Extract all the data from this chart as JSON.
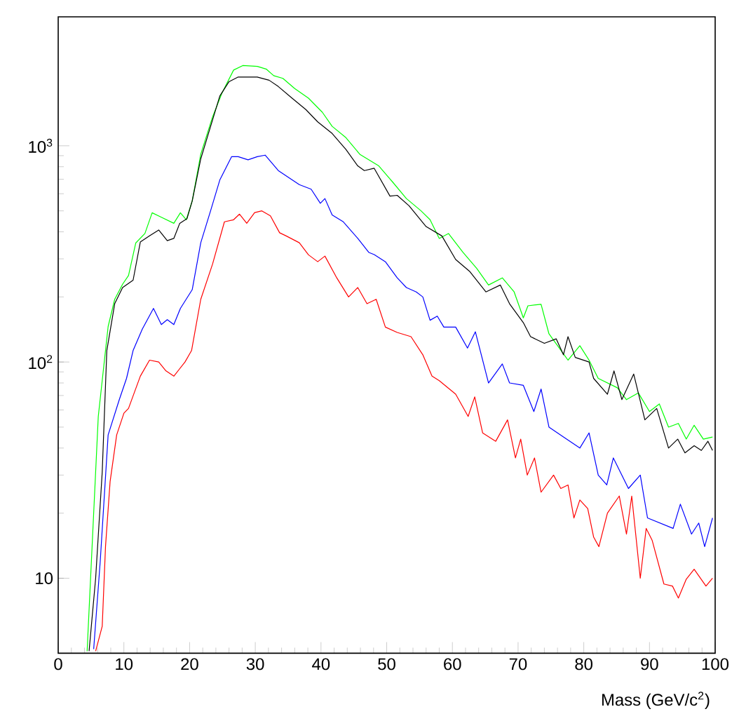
{
  "chart_data": {
    "type": "line",
    "xlabel": "Mass (GeV/c$^{2}$)",
    "log": "y",
    "xlim": [
      0,
      100
    ],
    "xticks": [
      0,
      10,
      20,
      30,
      40,
      50,
      60,
      70,
      80,
      90,
      100
    ],
    "ylim": [
      4.5,
      3950
    ],
    "yticks": [
      {
        "value": 10,
        "label": "10"
      },
      {
        "value": 100,
        "label": "10$^{2}$"
      },
      {
        "value": 1000,
        "label": "10$^{3}$"
      }
    ],
    "series": [
      {
        "color": "#00ff00",
        "x": [
          4.4,
          6.1,
          7.6,
          8.6,
          9.8,
          10.7,
          11.8,
          13.2,
          14.3,
          15.7,
          17.6,
          18.6,
          19.5,
          20.4,
          21.7,
          23.5,
          24.9,
          26.7,
          28.1,
          30.3,
          31.7,
          32.8,
          34.2,
          36.0,
          38.1,
          40.2,
          41.7,
          43.8,
          45.9,
          48.8,
          50.9,
          53.0,
          55.2,
          56.6,
          58.0,
          59.4,
          61.6,
          63.7,
          65.5,
          67.6,
          69.4,
          70.8,
          71.5,
          73.5,
          74.7,
          77.6,
          79.4,
          80.8,
          82.2,
          85.1,
          86.5,
          88.3,
          90.0,
          91.5,
          92.9,
          94.4,
          95.6,
          96.8,
          98.2,
          99.6
        ],
        "values": [
          4.6,
          56,
          146,
          195,
          229,
          251,
          355,
          393,
          490,
          467,
          438,
          490,
          455,
          556,
          914,
          1360,
          1745,
          2240,
          2350,
          2330,
          2260,
          2110,
          2050,
          1840,
          1660,
          1430,
          1230,
          1090,
          914,
          807,
          680,
          570,
          501,
          455,
          373,
          393,
          322,
          271,
          227,
          245,
          211,
          160,
          182,
          185,
          135,
          102,
          119,
          102,
          84,
          76,
          67,
          72,
          59,
          64,
          50,
          52,
          44,
          51,
          44,
          45
        ]
      },
      {
        "color": "#000000",
        "x": [
          4.7,
          5.7,
          6.7,
          7.4,
          8.6,
          9.8,
          11.4,
          12.5,
          13.9,
          15.3,
          16.6,
          17.6,
          18.5,
          19.6,
          20.4,
          21.7,
          23.2,
          24.6,
          26.0,
          27.4,
          30.3,
          32.1,
          33.5,
          35.6,
          37.7,
          39.5,
          41.7,
          43.8,
          45.6,
          46.6,
          48.1,
          50.5,
          51.6,
          53.4,
          56.0,
          58.4,
          60.5,
          62.6,
          65.1,
          67.3,
          68.7,
          70.8,
          71.9,
          74.0,
          75.8,
          76.9,
          77.6,
          78.7,
          80.8,
          81.5,
          83.6,
          84.6,
          85.8,
          87.6,
          89.3,
          91.1,
          92.9,
          94.3,
          95.4,
          96.8,
          97.9,
          98.9,
          99.6
        ],
        "values": [
          4.6,
          10,
          31,
          113,
          186,
          221,
          239,
          359,
          383,
          408,
          364,
          373,
          438,
          460,
          556,
          870,
          1230,
          1700,
          1980,
          2080,
          2080,
          2010,
          1880,
          1660,
          1470,
          1290,
          1140,
          961,
          807,
          768,
          787,
          585,
          590,
          528,
          423,
          383,
          298,
          263,
          211,
          227,
          186,
          152,
          131,
          122,
          128,
          108,
          131,
          105,
          100,
          84,
          71,
          91,
          67,
          88,
          54,
          61,
          40,
          44,
          38,
          41,
          39,
          43,
          39
        ]
      },
      {
        "color": "#0000ff",
        "x": [
          5.4,
          6.4,
          7.6,
          9.3,
          10.4,
          11.4,
          12.8,
          14.5,
          15.7,
          16.6,
          17.6,
          18.6,
          20.4,
          21.7,
          23.2,
          24.6,
          26.4,
          27.4,
          28.9,
          30.3,
          31.5,
          33.5,
          36.7,
          38.5,
          39.9,
          40.6,
          41.7,
          43.4,
          45.6,
          47.3,
          48.1,
          49.8,
          51.6,
          53.0,
          54.5,
          55.5,
          56.6,
          57.7,
          58.7,
          60.5,
          62.3,
          63.5,
          65.5,
          67.6,
          68.7,
          70.8,
          72.4,
          73.5,
          74.7,
          76.9,
          79.4,
          80.8,
          82.2,
          83.5,
          84.5,
          86.8,
          88.6,
          89.7,
          93.6,
          94.7,
          96.4,
          97.5,
          98.4,
          99.6
        ],
        "values": [
          4.7,
          12,
          46,
          67,
          84,
          113,
          142,
          177,
          149,
          157,
          149,
          177,
          216,
          356,
          501,
          695,
          891,
          891,
          861,
          891,
          905,
          768,
          661,
          630,
          542,
          570,
          479,
          445,
          373,
          321,
          314,
          291,
          245,
          221,
          211,
          200,
          156,
          163,
          145,
          145,
          116,
          138,
          80,
          98,
          80,
          78,
          59,
          75,
          50,
          45,
          40,
          47,
          30,
          27,
          36,
          26,
          30,
          19,
          17,
          22,
          16,
          18,
          14,
          19
        ]
      },
      {
        "color": "#ff0000",
        "x": [
          5.7,
          6.7,
          7.2,
          7.9,
          8.9,
          10.0,
          10.7,
          12.5,
          13.9,
          15.3,
          16.4,
          17.6,
          19.3,
          20.3,
          21.7,
          23.5,
          25.3,
          26.7,
          27.6,
          28.7,
          29.9,
          31.0,
          32.3,
          33.7,
          34.7,
          36.7,
          38.1,
          39.5,
          40.6,
          42.4,
          44.2,
          45.6,
          47.0,
          48.4,
          49.8,
          51.6,
          53.7,
          55.5,
          56.9,
          58.0,
          60.5,
          62.4,
          63.4,
          64.6,
          66.6,
          68.4,
          69.6,
          70.4,
          71.4,
          72.5,
          73.5,
          75.4,
          76.5,
          77.6,
          78.5,
          79.4,
          80.6,
          81.5,
          82.3,
          83.6,
          85.4,
          86.5,
          87.3,
          88.6,
          89.5,
          90.4,
          92.2,
          93.5,
          94.4,
          95.6,
          96.8,
          98.6,
          99.6
        ],
        "values": [
          4.6,
          6.0,
          14,
          28,
          46,
          58,
          61,
          86,
          102,
          100,
          91,
          86,
          100,
          113,
          195,
          284,
          445,
          455,
          483,
          438,
          491,
          500,
          474,
          396,
          383,
          356,
          313,
          291,
          309,
          245,
          200,
          221,
          186,
          195,
          145,
          137,
          131,
          108,
          86,
          82,
          71,
          56,
          69,
          47,
          43,
          54,
          36,
          44,
          30,
          36,
          25,
          30,
          26,
          27,
          19,
          23,
          21,
          15.5,
          14,
          20,
          24,
          16,
          24,
          10,
          17,
          15,
          9.4,
          9.2,
          8.1,
          9.9,
          11,
          9.2,
          10
        ]
      }
    ]
  }
}
